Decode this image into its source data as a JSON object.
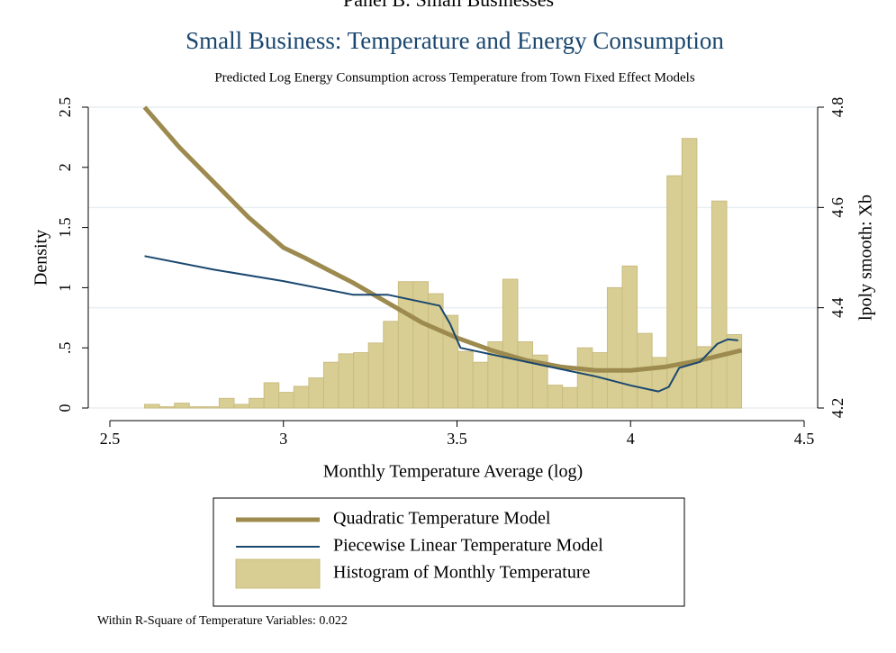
{
  "chart_data": {
    "type": "combo",
    "header": "Panel B: Small Businesses",
    "title": "Small Business: Temperature and Energy Consumption",
    "subtitle": "Predicted Log Energy Consumption across Temperature from Town Fixed Effect Models",
    "xlabel": "Monthly Temperature Average (log)",
    "ylabel": "Density",
    "y2label": "lpoly smooth: Xb",
    "note": "Within R-Square of Temperature Variables: 0.022",
    "xlim": [
      2.5,
      4.5
    ],
    "xticks": [
      2.5,
      3,
      3.5,
      4,
      4.5
    ],
    "ylim": [
      0,
      2.5
    ],
    "yticks": [
      0,
      {
        "value": 0.5,
        "label": ".5"
      },
      1,
      1.5,
      2,
      2.5
    ],
    "y2lim": [
      4.2,
      4.8
    ],
    "y2ticks": [
      4.2,
      4.4,
      4.6,
      4.8
    ],
    "grid": true,
    "legend": "bottom",
    "series": [
      {
        "name": "Quadratic Temperature Model",
        "type": "line",
        "axis": "y2",
        "color": "#9c8a4e",
        "width": 5,
        "x": [
          2.6,
          2.7,
          2.8,
          2.9,
          3.0,
          3.06,
          3.2,
          3.3,
          3.4,
          3.5,
          3.6,
          3.7,
          3.8,
          3.9,
          4.0,
          4.1,
          4.2,
          4.32
        ],
        "values": [
          4.8,
          4.72,
          4.65,
          4.58,
          4.52,
          4.5,
          4.45,
          4.41,
          4.37,
          4.34,
          4.315,
          4.295,
          4.282,
          4.275,
          4.275,
          4.282,
          4.295,
          4.315
        ]
      },
      {
        "name": "Piecewise Linear Temperature Model",
        "type": "line",
        "axis": "y2",
        "color": "#1a476f",
        "width": 2,
        "x": [
          2.6,
          2.8,
          3.0,
          3.2,
          3.3,
          3.45,
          3.48,
          3.51,
          3.7,
          3.9,
          4.0,
          4.08,
          4.11,
          4.14,
          4.2,
          4.25,
          4.28,
          4.31
        ],
        "values": [
          4.503,
          4.476,
          4.453,
          4.426,
          4.426,
          4.404,
          4.368,
          4.32,
          4.292,
          4.263,
          4.245,
          4.233,
          4.242,
          4.28,
          4.292,
          4.328,
          4.337,
          4.335
        ]
      },
      {
        "name": "Histogram of Monthly Temperature",
        "type": "histogram",
        "color": "#d8ce93",
        "edge": "#c9bc80",
        "bins": [
          2.6,
          2.643,
          2.686,
          2.729,
          2.772,
          2.815,
          2.858,
          2.901,
          2.944,
          2.987,
          3.03,
          3.073,
          3.116,
          3.159,
          3.202,
          3.245,
          3.288,
          3.331,
          3.374,
          3.417,
          3.46,
          3.503,
          3.546,
          3.589,
          3.632,
          3.675,
          3.718,
          3.761,
          3.804,
          3.847,
          3.89,
          3.933,
          3.976,
          4.019,
          4.062,
          4.105,
          4.148,
          4.191,
          4.234,
          4.277,
          4.32
        ],
        "values": [
          0.03,
          0.01,
          0.04,
          0.01,
          0.01,
          0.08,
          0.03,
          0.08,
          0.21,
          0.13,
          0.18,
          0.25,
          0.38,
          0.45,
          0.46,
          0.54,
          0.72,
          1.05,
          1.05,
          0.95,
          0.77,
          0.47,
          0.38,
          0.55,
          1.07,
          0.55,
          0.44,
          0.19,
          0.17,
          0.5,
          0.46,
          1.0,
          1.18,
          0.62,
          0.42,
          1.93,
          2.24,
          0.51,
          1.72,
          0.61
        ]
      }
    ]
  }
}
